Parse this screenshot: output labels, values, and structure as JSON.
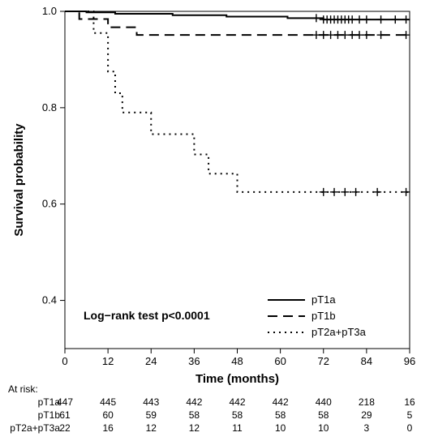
{
  "chart": {
    "type": "kaplan-meier",
    "background_color": "#ffffff",
    "plot_border_color": "#000000",
    "line_color": "#000000",
    "xlabel": "Time (months)",
    "ylabel": "Survival probability",
    "label_fontsize": 15,
    "tick_fontsize": 13,
    "xlim": [
      0,
      96
    ],
    "ylim": [
      0.3,
      1.0
    ],
    "xticks": [
      0,
      12,
      24,
      36,
      48,
      60,
      72,
      84,
      96
    ],
    "yticks": [
      0.4,
      0.6,
      0.8,
      1.0
    ],
    "annotation": "Log−rank test p<0.0001",
    "legend": {
      "items": [
        {
          "label": "pT1a",
          "dash": "solid"
        },
        {
          "label": "pT1b",
          "dash": "dash"
        },
        {
          "label": "pT2a+pT3a",
          "dash": "dot"
        }
      ]
    },
    "series": [
      {
        "name": "pT1a",
        "dash": "solid",
        "line_width": 2,
        "steps": [
          [
            0,
            1.0
          ],
          [
            6,
            1.0
          ],
          [
            6,
            0.998
          ],
          [
            14,
            0.998
          ],
          [
            14,
            0.995
          ],
          [
            30,
            0.995
          ],
          [
            30,
            0.992
          ],
          [
            45,
            0.992
          ],
          [
            45,
            0.989
          ],
          [
            62,
            0.989
          ],
          [
            62,
            0.986
          ],
          [
            72,
            0.986
          ],
          [
            72,
            0.983
          ],
          [
            96,
            0.983
          ]
        ],
        "censors": [
          [
            70,
            0.986
          ],
          [
            72,
            0.983
          ],
          [
            73,
            0.983
          ],
          [
            74,
            0.983
          ],
          [
            75,
            0.983
          ],
          [
            76,
            0.983
          ],
          [
            77,
            0.983
          ],
          [
            78,
            0.983
          ],
          [
            79,
            0.983
          ],
          [
            80,
            0.983
          ],
          [
            82,
            0.983
          ],
          [
            84,
            0.983
          ],
          [
            88,
            0.983
          ],
          [
            92,
            0.983
          ],
          [
            95,
            0.983
          ]
        ]
      },
      {
        "name": "pT1b",
        "dash": "dash",
        "line_width": 2,
        "steps": [
          [
            0,
            1.0
          ],
          [
            4,
            1.0
          ],
          [
            4,
            0.984
          ],
          [
            12,
            0.984
          ],
          [
            12,
            0.967
          ],
          [
            20,
            0.967
          ],
          [
            20,
            0.951
          ],
          [
            96,
            0.951
          ]
        ],
        "censors": [
          [
            70,
            0.951
          ],
          [
            72,
            0.951
          ],
          [
            74,
            0.951
          ],
          [
            76,
            0.951
          ],
          [
            78,
            0.951
          ],
          [
            80,
            0.951
          ],
          [
            82,
            0.951
          ],
          [
            84,
            0.951
          ],
          [
            88,
            0.951
          ],
          [
            95,
            0.951
          ]
        ]
      },
      {
        "name": "pT2a+pT3a",
        "dash": "dot",
        "line_width": 2,
        "steps": [
          [
            0,
            1.0
          ],
          [
            8,
            1.0
          ],
          [
            8,
            0.955
          ],
          [
            12,
            0.955
          ],
          [
            12,
            0.875
          ],
          [
            14,
            0.875
          ],
          [
            14,
            0.83
          ],
          [
            16,
            0.83
          ],
          [
            16,
            0.79
          ],
          [
            24,
            0.79
          ],
          [
            24,
            0.745
          ],
          [
            36,
            0.745
          ],
          [
            36,
            0.703
          ],
          [
            40,
            0.703
          ],
          [
            40,
            0.663
          ],
          [
            48,
            0.663
          ],
          [
            48,
            0.625
          ],
          [
            96,
            0.625
          ]
        ],
        "censors": [
          [
            72,
            0.625
          ],
          [
            75,
            0.625
          ],
          [
            78,
            0.625
          ],
          [
            81,
            0.625
          ],
          [
            87,
            0.625
          ],
          [
            95,
            0.625
          ]
        ]
      }
    ]
  },
  "risk_table": {
    "header": "At risk:",
    "times": [
      0,
      12,
      24,
      36,
      48,
      60,
      72,
      84,
      96
    ],
    "rows": [
      {
        "label": "pT1a",
        "values": [
          447,
          445,
          443,
          442,
          442,
          442,
          440,
          218,
          16
        ]
      },
      {
        "label": "pT1b",
        "values": [
          61,
          60,
          59,
          58,
          58,
          58,
          58,
          29,
          5
        ]
      },
      {
        "label": "pT2a+pT3a",
        "values": [
          22,
          16,
          12,
          12,
          11,
          10,
          10,
          3,
          0
        ]
      }
    ]
  }
}
